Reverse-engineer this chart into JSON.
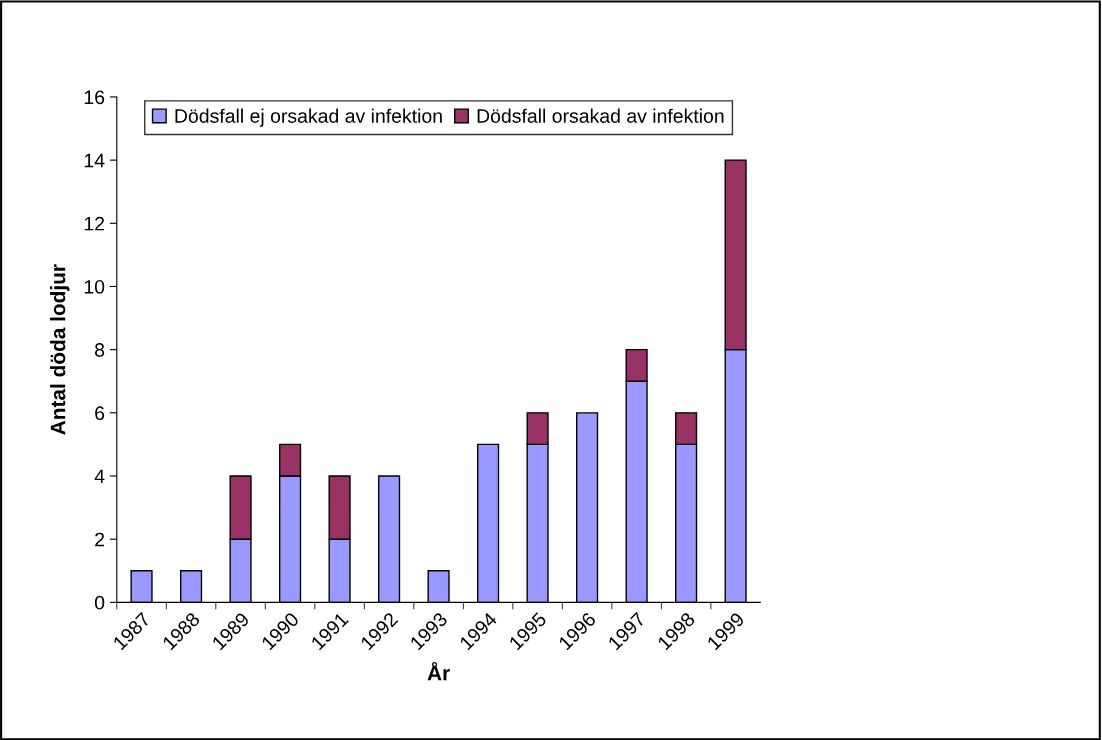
{
  "chart_data": {
    "type": "bar",
    "stacked": true,
    "xlabel": "År",
    "ylabel": "Antal döda lodjur",
    "categories": [
      "1987",
      "1988",
      "1989",
      "1990",
      "1991",
      "1992",
      "1993",
      "1994",
      "1995",
      "1996",
      "1997",
      "1998",
      "1999"
    ],
    "series": [
      {
        "name": "Dödsfall ej orsakad av infektion",
        "color": "#9999ff",
        "values": [
          1,
          1,
          2,
          4,
          2,
          4,
          1,
          5,
          5,
          6,
          7,
          5,
          8
        ]
      },
      {
        "name": "Dödsfall orsakad av infektion",
        "color": "#993366",
        "values": [
          0,
          0,
          2,
          1,
          2,
          0,
          0,
          0,
          1,
          0,
          1,
          1,
          6
        ]
      }
    ],
    "ylim": [
      0,
      16
    ],
    "yticks": [
      0,
      2,
      4,
      6,
      8,
      10,
      12,
      14,
      16
    ],
    "grid": false,
    "legend": "top"
  }
}
